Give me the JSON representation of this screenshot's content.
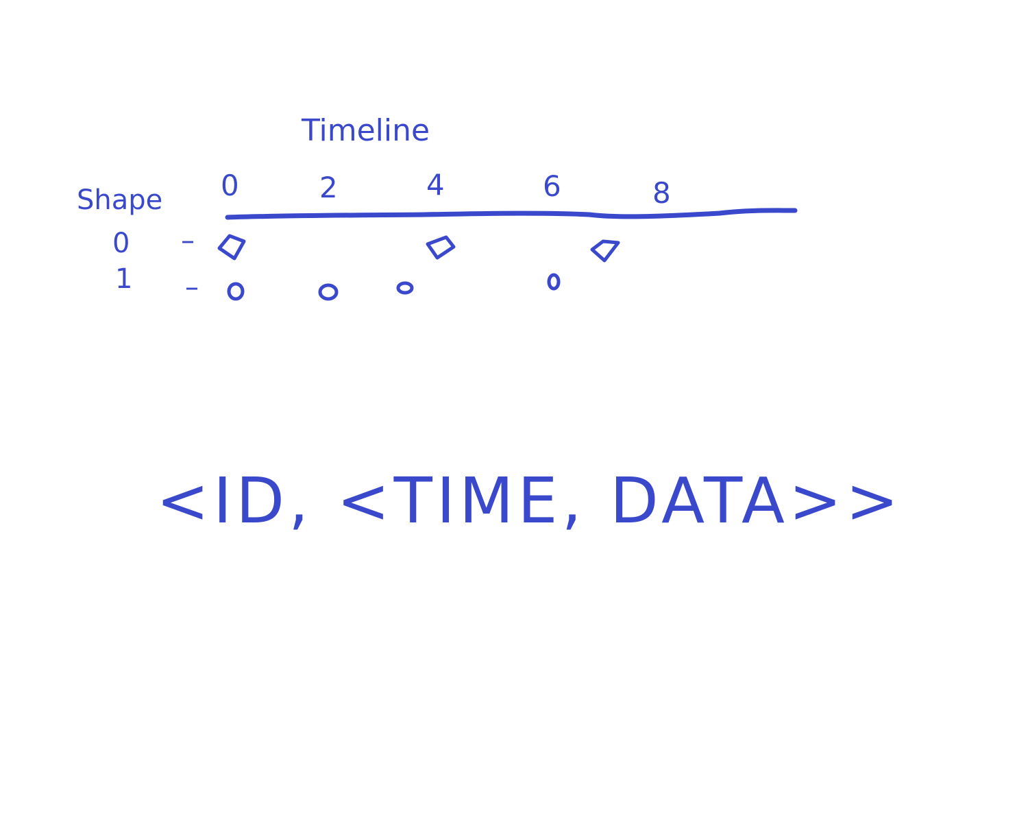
{
  "diagram": {
    "title": "Timeline",
    "row_axis_label": "Shape",
    "color": "#3a48cc",
    "time_ticks": [
      "0",
      "2",
      "4",
      "6",
      "8"
    ],
    "rows": [
      {
        "id_label": "0",
        "dash": "–",
        "marker": "diamond-icon",
        "events_at_time": [
          0,
          4,
          7.5
        ]
      },
      {
        "id_label": "1",
        "dash": "–",
        "marker": "circle-icon",
        "events_at_time": [
          0,
          2,
          3.5,
          6.5
        ]
      }
    ],
    "formula": "<ID, <TIME, DATA>>"
  }
}
